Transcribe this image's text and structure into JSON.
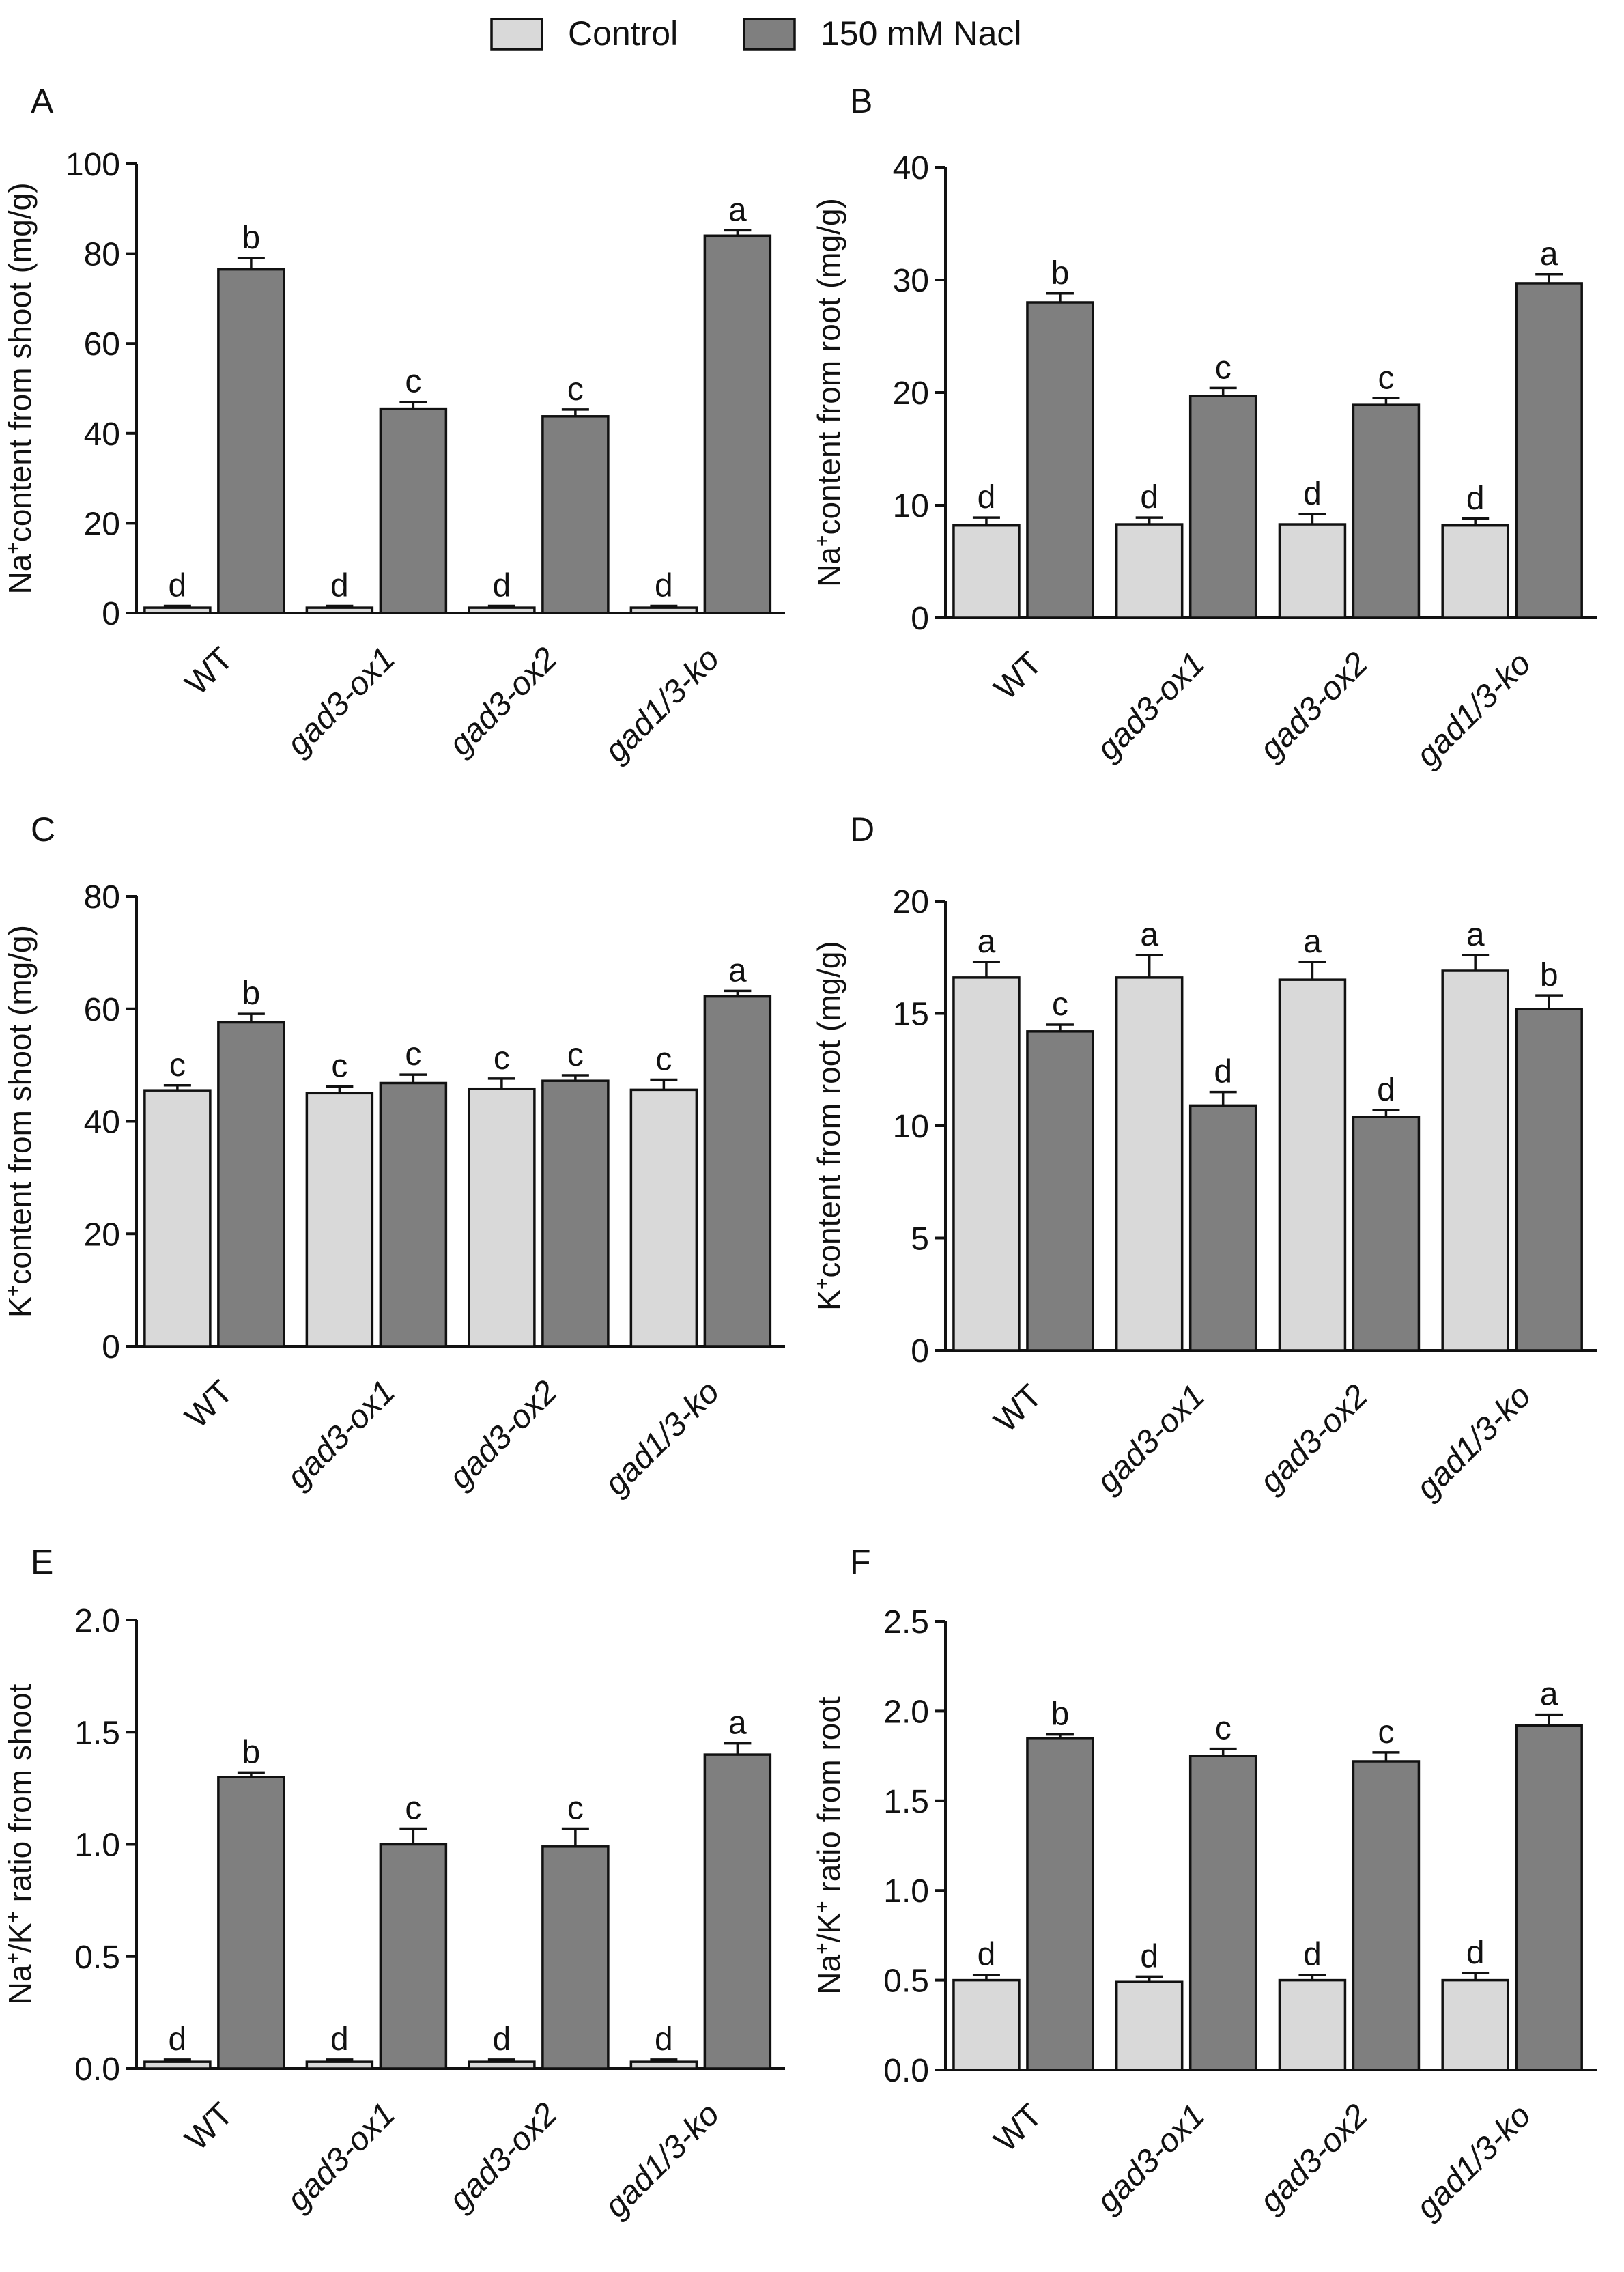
{
  "legend": {
    "control_label": "Control",
    "nacl_label": "150 mM Nacl",
    "control_color": "#d9d9d9",
    "nacl_color": "#7f7f7f"
  },
  "chart_data": [
    {
      "panel": "A",
      "type": "bar",
      "ylabel_prefix": "Na",
      "ylabel_sup": "+",
      "ylabel_rest": "content from shoot (mg/g)",
      "categories": [
        "WT",
        "gad3-ox1",
        "gad3-ox2",
        "gad1/3-ko"
      ],
      "ylim": [
        0,
        100
      ],
      "yticks": [
        0,
        20,
        40,
        60,
        80,
        100
      ],
      "series": [
        {
          "name": "Control",
          "values": [
            1.2,
            1.2,
            1.2,
            1.2
          ],
          "errors": [
            0.4,
            0.4,
            0.4,
            0.4
          ],
          "letters": [
            "d",
            "d",
            "d",
            "d"
          ]
        },
        {
          "name": "150 mM Nacl",
          "values": [
            76.5,
            45.5,
            43.8,
            84.0
          ],
          "errors": [
            2.5,
            1.5,
            1.5,
            1.2
          ],
          "letters": [
            "b",
            "c",
            "c",
            "a"
          ]
        }
      ]
    },
    {
      "panel": "B",
      "type": "bar",
      "ylabel_prefix": "Na",
      "ylabel_sup": "+",
      "ylabel_rest": "content from root (mg/g)",
      "categories": [
        "WT",
        "gad3-ox1",
        "gad3-ox2",
        "gad1/3-ko"
      ],
      "ylim": [
        0,
        40
      ],
      "yticks": [
        0,
        10,
        20,
        30,
        40
      ],
      "series": [
        {
          "name": "Control",
          "values": [
            8.2,
            8.3,
            8.3,
            8.2
          ],
          "errors": [
            0.7,
            0.6,
            0.9,
            0.6
          ],
          "letters": [
            "d",
            "d",
            "d",
            "d"
          ]
        },
        {
          "name": "150 mM Nacl",
          "values": [
            28.0,
            19.7,
            18.9,
            29.7
          ],
          "errors": [
            0.8,
            0.7,
            0.6,
            0.8
          ],
          "letters": [
            "b",
            "c",
            "c",
            "a"
          ]
        }
      ]
    },
    {
      "panel": "C",
      "type": "bar",
      "ylabel_prefix": "K",
      "ylabel_sup": "+",
      "ylabel_rest": "content from shoot (mg/g)",
      "categories": [
        "WT",
        "gad3-ox1",
        "gad3-ox2",
        "gad1/3-ko"
      ],
      "ylim": [
        0,
        80
      ],
      "yticks": [
        0,
        20,
        40,
        60,
        80
      ],
      "series": [
        {
          "name": "Control",
          "values": [
            45.5,
            45.0,
            45.8,
            45.6
          ],
          "errors": [
            0.9,
            1.2,
            1.8,
            1.8
          ],
          "letters": [
            "c",
            "c",
            "c",
            "c"
          ]
        },
        {
          "name": "150 mM Nacl",
          "values": [
            57.6,
            46.8,
            47.2,
            62.2
          ],
          "errors": [
            1.5,
            1.5,
            1.0,
            1.0
          ],
          "letters": [
            "b",
            "c",
            "c",
            "a"
          ]
        }
      ]
    },
    {
      "panel": "D",
      "type": "bar",
      "ylabel_prefix": "K",
      "ylabel_sup": "+",
      "ylabel_rest": "content from root (mg/g)",
      "categories": [
        "WT",
        "gad3-ox1",
        "gad3-ox2",
        "gad1/3-ko"
      ],
      "ylim": [
        0,
        20
      ],
      "yticks": [
        0,
        5,
        10,
        15,
        20
      ],
      "series": [
        {
          "name": "Control",
          "values": [
            16.6,
            16.6,
            16.5,
            16.9
          ],
          "errors": [
            0.7,
            1.0,
            0.8,
            0.7
          ],
          "letters": [
            "a",
            "a",
            "a",
            "a"
          ]
        },
        {
          "name": "150 mM Nacl",
          "values": [
            14.2,
            10.9,
            10.4,
            15.2
          ],
          "errors": [
            0.3,
            0.6,
            0.3,
            0.6
          ],
          "letters": [
            "c",
            "d",
            "d",
            "b"
          ]
        }
      ]
    },
    {
      "panel": "E",
      "type": "bar",
      "ylabel_prefix": "Na",
      "ylabel_sup": "+",
      "ylabel_mid": "/K",
      "ylabel_sup2": "+",
      "ylabel_rest": " ratio from shoot",
      "categories": [
        "WT",
        "gad3-ox1",
        "gad3-ox2",
        "gad1/3-ko"
      ],
      "ylim": [
        0,
        2.0
      ],
      "yticks": [
        0.0,
        0.5,
        1.0,
        1.5,
        2.0
      ],
      "ytick_labels": [
        "0.0",
        "0.5",
        "1.0",
        "1.5",
        "2.0"
      ],
      "series": [
        {
          "name": "Control",
          "values": [
            0.03,
            0.03,
            0.03,
            0.03
          ],
          "errors": [
            0.01,
            0.01,
            0.01,
            0.01
          ],
          "letters": [
            "d",
            "d",
            "d",
            "d"
          ]
        },
        {
          "name": "150 mM Nacl",
          "values": [
            1.3,
            1.0,
            0.99,
            1.4
          ],
          "errors": [
            0.02,
            0.07,
            0.08,
            0.05
          ],
          "letters": [
            "b",
            "c",
            "c",
            "a"
          ]
        }
      ]
    },
    {
      "panel": "F",
      "type": "bar",
      "ylabel_prefix": "Na",
      "ylabel_sup": "+",
      "ylabel_mid": "/K",
      "ylabel_sup2": "+",
      "ylabel_rest": " ratio from root",
      "categories": [
        "WT",
        "gad3-ox1",
        "gad3-ox2",
        "gad1/3-ko"
      ],
      "ylim": [
        0,
        2.5
      ],
      "yticks": [
        0.0,
        0.5,
        1.0,
        1.5,
        2.0,
        2.5
      ],
      "ytick_labels": [
        "0.0",
        "0.5",
        "1.0",
        "1.5",
        "2.0",
        "2.5"
      ],
      "series": [
        {
          "name": "Control",
          "values": [
            0.5,
            0.49,
            0.5,
            0.5
          ],
          "errors": [
            0.03,
            0.03,
            0.03,
            0.04
          ],
          "letters": [
            "d",
            "d",
            "d",
            "d"
          ]
        },
        {
          "name": "150 mM Nacl",
          "values": [
            1.85,
            1.75,
            1.72,
            1.92
          ],
          "errors": [
            0.02,
            0.04,
            0.05,
            0.06
          ],
          "letters": [
            "b",
            "c",
            "c",
            "a"
          ]
        }
      ]
    }
  ]
}
